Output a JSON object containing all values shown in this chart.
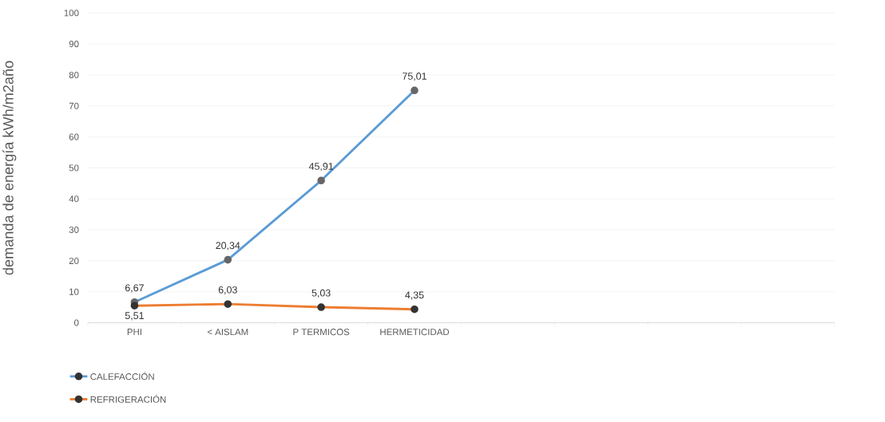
{
  "chart_data": {
    "type": "line",
    "ylabel": "demanda de energía kWh/m2año",
    "categories": [
      "PHI",
      "< AISLAM",
      "P TERMICOS",
      "HERMETICIDAD",
      null,
      null,
      null,
      null
    ],
    "series": [
      {
        "name": "CALEFACCIÓN",
        "color": "#5b9bd5",
        "values": [
          6.67,
          20.34,
          45.91,
          75.01,
          null,
          null,
          null,
          null
        ],
        "value_labels": [
          "6,67",
          "20,34",
          "45,91",
          "75,01",
          null,
          null,
          null,
          null
        ]
      },
      {
        "name": "REFRIGERACIÓN",
        "color": "#ed7d31",
        "values": [
          5.51,
          6.03,
          5.03,
          4.35,
          null,
          null,
          null,
          null
        ],
        "value_labels": [
          "5,51",
          "6,03",
          "5,03",
          "4,35",
          null,
          null,
          null,
          null
        ]
      }
    ],
    "ylim": [
      0,
      100
    ],
    "yticks": [
      0,
      10,
      20,
      30,
      40,
      50,
      60,
      70,
      80,
      90,
      100
    ],
    "grid": "y",
    "legend": "bottom left",
    "marker": "circle",
    "line_style": "solid"
  }
}
